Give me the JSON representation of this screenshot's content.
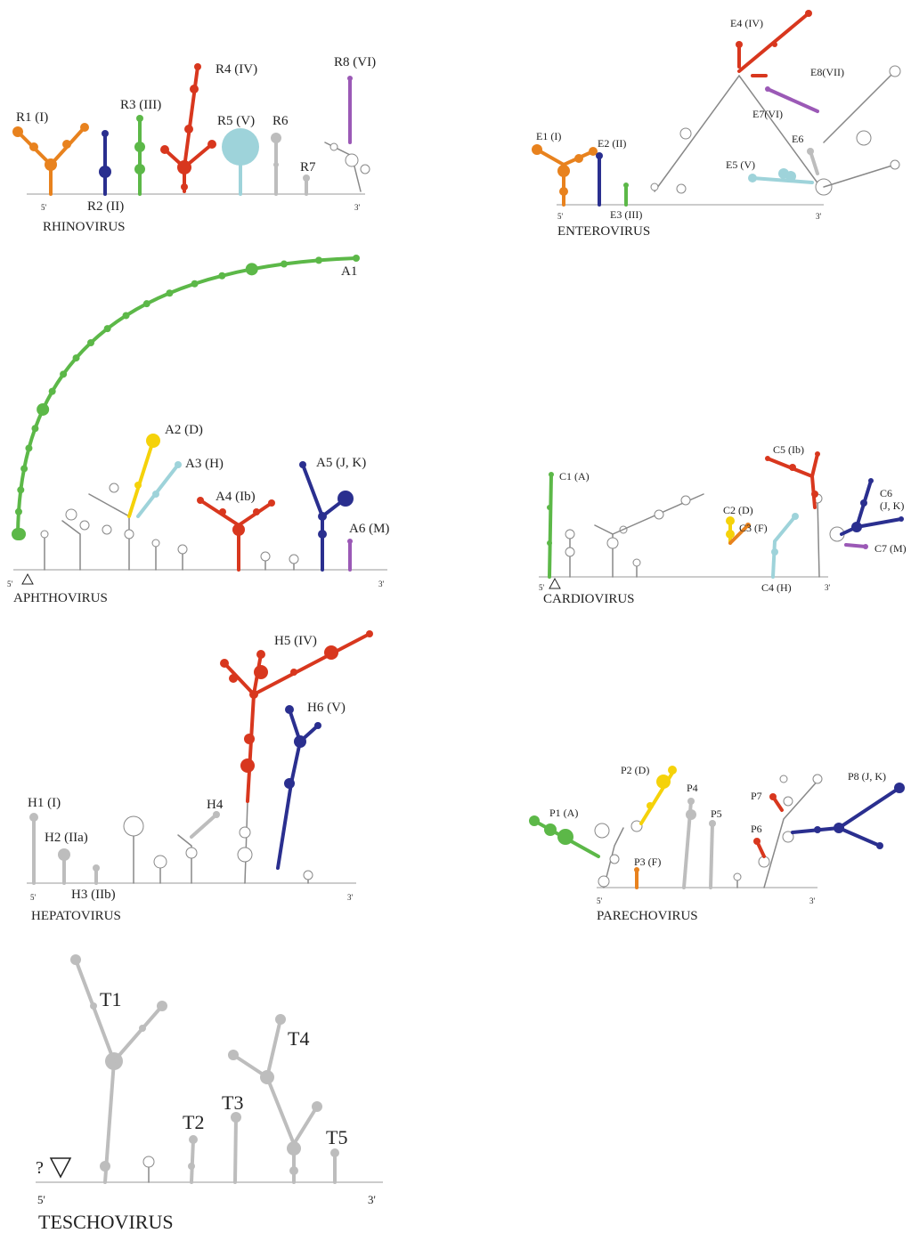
{
  "panels": [
    {
      "name": "RHINOVIRUS",
      "five_prime": "5'",
      "three_prime": "3'",
      "labels": [
        "R1 (I)",
        "R2 (II)",
        "R3 (III)",
        "R4 (IV)",
        "R5 (V)",
        "R6",
        "R7",
        "R8 (VI)"
      ]
    },
    {
      "name": "ENTEROVIRUS",
      "five_prime": "5'",
      "three_prime": "3'",
      "labels": [
        "E1 (I)",
        "E2 (II)",
        "E3 (III)",
        "E4 (IV)",
        "E5 (V)",
        "E6",
        "E7(VI)",
        "E8(VII)"
      ]
    },
    {
      "name": "APHTHOVIRUS",
      "five_prime": "5'",
      "three_prime": "3'",
      "labels": [
        "A1",
        "A2 (D)",
        "A3 (H)",
        "A4 (Ib)",
        "A5 (J, K)",
        "A6 (M)"
      ]
    },
    {
      "name": "CARDIOVIRUS",
      "five_prime": "5'",
      "three_prime": "3'",
      "labels": [
        "C1 (A)",
        "C2 (D)",
        "C3 (F)",
        "C4 (H)",
        "C5 (Ib)",
        "C6",
        "(J, K)",
        "C7 (M)"
      ]
    },
    {
      "name": "HEPATOVIRUS",
      "five_prime": "5'",
      "three_prime": "3'",
      "labels": [
        "H1 (I)",
        "H2 (IIa)",
        "H3 (IIb)",
        "H4",
        "H5 (IV)",
        "H6 (V)"
      ]
    },
    {
      "name": "PARECHOVIRUS",
      "five_prime": "5'",
      "three_prime": "3'",
      "labels": [
        "P1 (A)",
        "P2 (D)",
        "P3 (F)",
        "P4",
        "P5",
        "P6",
        "P7",
        "P8 (J, K)"
      ]
    },
    {
      "name": "TESCHOVIRUS",
      "five_prime": "5'",
      "three_prime": "3'",
      "question": "?",
      "labels": [
        "T1",
        "T2",
        "T3",
        "T4",
        "T5"
      ]
    }
  ]
}
